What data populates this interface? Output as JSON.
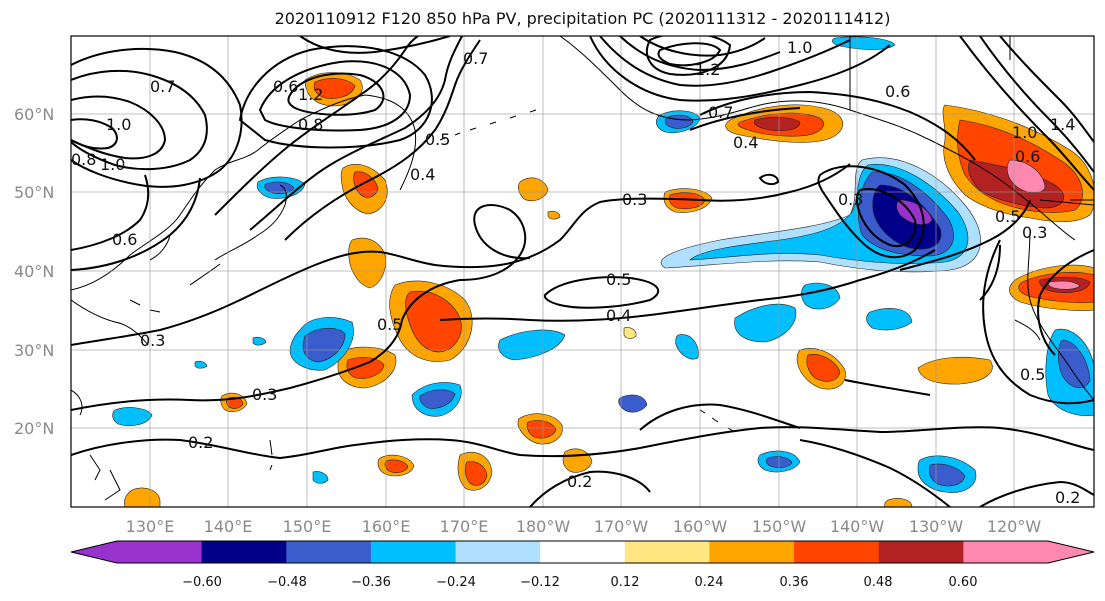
{
  "title": "2020110912 F120 850 hPa PV, precipitation PC (2020111312 - 2020111412)",
  "lat_labels": [
    "20°N",
    "30°N",
    "40°N",
    "50°N",
    "60°N"
  ],
  "lon_labels": [
    "130°E",
    "140°E",
    "150°E",
    "160°E",
    "170°E",
    "180°W",
    "170°W",
    "160°W",
    "150°W",
    "140°W",
    "130°W",
    "120°W"
  ],
  "contour_labels": [
    "1.0",
    "0.7",
    "1.2",
    "1.2",
    "0.8",
    "0.6",
    "0.7",
    "1.0",
    "0.8",
    "0.5",
    "0.4",
    "0.6",
    "0.3",
    "0.5",
    "0.4",
    "0.5",
    "0.3",
    "0.3",
    "0.2",
    "0.2",
    "0.7",
    "0.4",
    "0.6",
    "1.0",
    "1.4",
    "0.6",
    "0.3",
    "0.5",
    "0.3",
    "0.5",
    "0.2",
    "1.0"
  ],
  "colorbar": {
    "tick_labels": [
      "−0.60",
      "−0.48",
      "−0.36",
      "−0.24",
      "−0.12",
      "0.12",
      "0.24",
      "0.36",
      "0.48",
      "0.60"
    ],
    "colors": [
      "#9932cc",
      "#00008b",
      "#3a5ccc",
      "#00bfff",
      "#b0e0ff",
      "#ffffff",
      "#ffe680",
      "#ffa500",
      "#ff4500",
      "#b22222",
      "#ff88b0",
      "#ffffff"
    ]
  }
}
